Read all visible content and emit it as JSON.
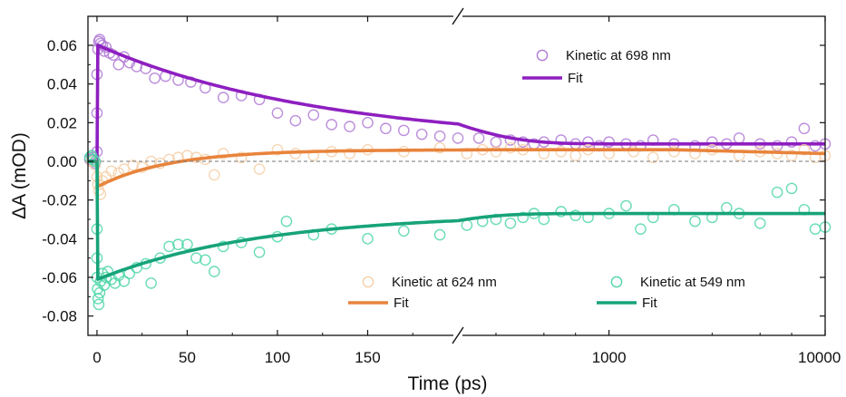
{
  "chart_data": {
    "type": "scatter",
    "title": "",
    "xlabel": "Time (ps)",
    "ylabel": "ΔA (mOD)",
    "x_scale": "broken: linear -5 to 200 ps, then log 200 to 10000 ps",
    "ylim": [
      -0.09,
      0.075
    ],
    "y_ticks": [
      0.06,
      0.04,
      0.02,
      0.0,
      -0.02,
      -0.04,
      -0.06,
      -0.08
    ],
    "y_tick_labels": [
      "0.06",
      "0.04",
      "0.02",
      "0.00",
      "-0.02",
      "-0.04",
      "-0.06",
      "-0.08"
    ],
    "x_ticks": [
      0,
      50,
      100,
      150,
      1000,
      10000
    ],
    "x_tick_labels": [
      "0",
      "50",
      "100",
      "150",
      "1000",
      "10000"
    ],
    "zero_line": true,
    "axis_break": true,
    "series": [
      {
        "name": "Kinetic at 698 nm",
        "fit_label": "Fit",
        "color": "#8e1fc0",
        "marker_color": "#b07ad6",
        "fit": {
          "baseline": 0.0,
          "rise_ps": 0.5,
          "amplitude": 0.051,
          "tau_ps": 125,
          "offset": 0.009
        },
        "points": [
          [
            -4,
            0.001
          ],
          [
            -3,
            0.0
          ],
          [
            -2,
            0.002
          ],
          [
            -1,
            -0.001
          ],
          [
            0,
            0.005
          ],
          [
            0,
            0.025
          ],
          [
            0,
            0.045
          ],
          [
            0.5,
            0.058
          ],
          [
            1,
            0.062
          ],
          [
            1.5,
            0.063
          ],
          [
            2,
            0.061
          ],
          [
            3,
            0.06
          ],
          [
            4,
            0.057
          ],
          [
            5,
            0.059
          ],
          [
            7,
            0.056
          ],
          [
            9,
            0.055
          ],
          [
            12,
            0.05
          ],
          [
            15,
            0.054
          ],
          [
            18,
            0.051
          ],
          [
            22,
            0.049
          ],
          [
            27,
            0.048
          ],
          [
            32,
            0.043
          ],
          [
            38,
            0.044
          ],
          [
            45,
            0.042
          ],
          [
            52,
            0.041
          ],
          [
            60,
            0.038
          ],
          [
            70,
            0.033
          ],
          [
            80,
            0.034
          ],
          [
            90,
            0.032
          ],
          [
            100,
            0.025
          ],
          [
            110,
            0.021
          ],
          [
            120,
            0.024
          ],
          [
            130,
            0.019
          ],
          [
            140,
            0.018
          ],
          [
            150,
            0.02
          ],
          [
            160,
            0.017
          ],
          [
            170,
            0.016
          ],
          [
            180,
            0.014
          ],
          [
            190,
            0.013
          ],
          [
            200,
            0.012
          ],
          [
            250,
            0.012
          ],
          [
            300,
            0.01
          ],
          [
            350,
            0.011
          ],
          [
            400,
            0.01
          ],
          [
            450,
            0.009
          ],
          [
            500,
            0.01
          ],
          [
            600,
            0.011
          ],
          [
            700,
            0.009
          ],
          [
            800,
            0.01
          ],
          [
            900,
            0.008
          ],
          [
            1000,
            0.01
          ],
          [
            1200,
            0.009
          ],
          [
            1400,
            0.008
          ],
          [
            1600,
            0.011
          ],
          [
            2000,
            0.009
          ],
          [
            2500,
            0.008
          ],
          [
            3000,
            0.01
          ],
          [
            3500,
            0.009
          ],
          [
            4000,
            0.012
          ],
          [
            5000,
            0.009
          ],
          [
            6000,
            0.008
          ],
          [
            7000,
            0.01
          ],
          [
            8000,
            0.017
          ],
          [
            9000,
            0.008
          ],
          [
            10000,
            0.009
          ]
        ]
      },
      {
        "name": "Kinetic at 624 nm",
        "fit_label": "Fit",
        "color": "#e8843c",
        "marker_color": "#f5cfa8",
        "fit": {
          "baseline": 0.0,
          "rise_ps": 0.5,
          "amplitude": -0.019,
          "tau_ps": 40,
          "offset": 0.006,
          "late_decay_to": 0.004
        },
        "points": [
          [
            -3,
            0.0
          ],
          [
            -1,
            -0.002
          ],
          [
            0,
            -0.008
          ],
          [
            0.5,
            -0.012
          ],
          [
            1,
            -0.015
          ],
          [
            2,
            -0.017
          ],
          [
            3,
            -0.01
          ],
          [
            5,
            -0.008
          ],
          [
            8,
            -0.005
          ],
          [
            12,
            -0.006
          ],
          [
            15,
            -0.004
          ],
          [
            20,
            -0.002
          ],
          [
            25,
            -0.003
          ],
          [
            30,
            0.0
          ],
          [
            35,
            -0.001
          ],
          [
            40,
            0.001
          ],
          [
            45,
            0.002
          ],
          [
            50,
            0.003
          ],
          [
            55,
            0.002
          ],
          [
            60,
            0.001
          ],
          [
            65,
            -0.007
          ],
          [
            70,
            0.004
          ],
          [
            80,
            0.002
          ],
          [
            90,
            -0.004
          ],
          [
            100,
            0.006
          ],
          [
            110,
            0.004
          ],
          [
            120,
            0.003
          ],
          [
            130,
            0.005
          ],
          [
            140,
            0.004
          ],
          [
            150,
            0.006
          ],
          [
            170,
            0.005
          ],
          [
            190,
            0.007
          ],
          [
            220,
            0.004
          ],
          [
            260,
            0.006
          ],
          [
            300,
            0.005
          ],
          [
            350,
            0.007
          ],
          [
            400,
            0.006
          ],
          [
            500,
            0.004
          ],
          [
            600,
            0.005
          ],
          [
            700,
            0.003
          ],
          [
            800,
            0.006
          ],
          [
            1000,
            0.004
          ],
          [
            1300,
            0.005
          ],
          [
            1600,
            0.002
          ],
          [
            2000,
            0.005
          ],
          [
            2500,
            0.004
          ],
          [
            3000,
            0.006
          ],
          [
            4000,
            0.003
          ],
          [
            5000,
            0.005
          ],
          [
            6000,
            0.004
          ],
          [
            7000,
            0.003
          ],
          [
            8000,
            0.006
          ],
          [
            9000,
            0.002
          ],
          [
            10000,
            0.003
          ]
        ]
      },
      {
        "name": "Kinetic at 549 nm",
        "fit_label": "Fit",
        "color": "#17a37a",
        "marker_color": "#4fd6a8",
        "fit": {
          "baseline": 0.0,
          "rise_ps": 0.5,
          "amplitude": -0.034,
          "tau_ps": 90,
          "offset": -0.027
        },
        "points": [
          [
            -4,
            0.002
          ],
          [
            -3,
            0.003
          ],
          [
            -2,
            0.001
          ],
          [
            -1,
            0.0
          ],
          [
            0,
            -0.035
          ],
          [
            0,
            -0.05
          ],
          [
            0,
            -0.06
          ],
          [
            0.3,
            -0.066
          ],
          [
            0.6,
            -0.071
          ],
          [
            1,
            -0.074
          ],
          [
            1.5,
            -0.068
          ],
          [
            2,
            -0.062
          ],
          [
            3,
            -0.058
          ],
          [
            4,
            -0.064
          ],
          [
            5,
            -0.06
          ],
          [
            6,
            -0.057
          ],
          [
            8,
            -0.061
          ],
          [
            10,
            -0.063
          ],
          [
            12,
            -0.059
          ],
          [
            15,
            -0.062
          ],
          [
            18,
            -0.058
          ],
          [
            22,
            -0.055
          ],
          [
            27,
            -0.053
          ],
          [
            30,
            -0.063
          ],
          [
            35,
            -0.05
          ],
          [
            40,
            -0.044
          ],
          [
            45,
            -0.043
          ],
          [
            50,
            -0.043
          ],
          [
            55,
            -0.05
          ],
          [
            60,
            -0.051
          ],
          [
            65,
            -0.057
          ],
          [
            70,
            -0.044
          ],
          [
            80,
            -0.042
          ],
          [
            90,
            -0.047
          ],
          [
            100,
            -0.039
          ],
          [
            105,
            -0.031
          ],
          [
            120,
            -0.038
          ],
          [
            130,
            -0.035
          ],
          [
            150,
            -0.04
          ],
          [
            170,
            -0.036
          ],
          [
            190,
            -0.038
          ],
          [
            220,
            -0.033
          ],
          [
            260,
            -0.031
          ],
          [
            300,
            -0.03
          ],
          [
            350,
            -0.032
          ],
          [
            400,
            -0.029
          ],
          [
            450,
            -0.027
          ],
          [
            500,
            -0.03
          ],
          [
            600,
            -0.026
          ],
          [
            700,
            -0.028
          ],
          [
            800,
            -0.029
          ],
          [
            1000,
            -0.027
          ],
          [
            1200,
            -0.023
          ],
          [
            1400,
            -0.035
          ],
          [
            1600,
            -0.029
          ],
          [
            2000,
            -0.025
          ],
          [
            2500,
            -0.031
          ],
          [
            3000,
            -0.029
          ],
          [
            3500,
            -0.024
          ],
          [
            4000,
            -0.027
          ],
          [
            5000,
            -0.032
          ],
          [
            6000,
            -0.016
          ],
          [
            7000,
            -0.014
          ],
          [
            8000,
            -0.025
          ],
          [
            9000,
            -0.035
          ],
          [
            10000,
            -0.034
          ]
        ]
      }
    ],
    "legend": [
      {
        "text": "Kinetic at 698 nm",
        "kind": "marker",
        "series": 0
      },
      {
        "text": "Fit",
        "kind": "line",
        "series": 0
      },
      {
        "text": "Kinetic at 624 nm",
        "kind": "marker",
        "series": 1
      },
      {
        "text": "Fit",
        "kind": "line",
        "series": 1
      },
      {
        "text": "Kinetic at 549 nm",
        "kind": "marker",
        "series": 2
      },
      {
        "text": "Fit",
        "kind": "line",
        "series": 2
      }
    ]
  }
}
